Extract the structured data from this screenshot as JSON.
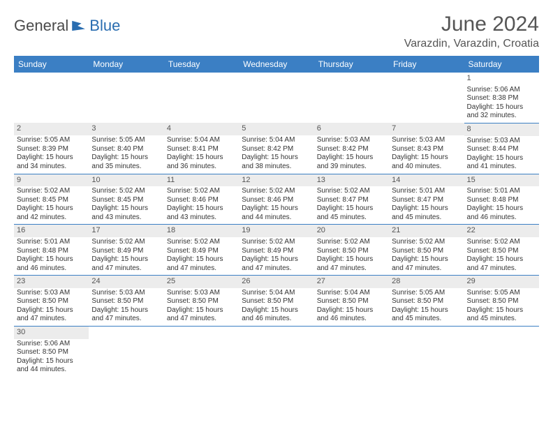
{
  "logo": {
    "text1": "General",
    "text2": "Blue"
  },
  "title": "June 2024",
  "location": "Varazdin, Varazdin, Croatia",
  "colors": {
    "header_bg": "#3b7fc4",
    "header_fg": "#ffffff",
    "cell_border": "#3b7fc4",
    "shade_bg": "#ececec",
    "text": "#333333",
    "title_color": "#555555"
  },
  "dayHeaders": [
    "Sunday",
    "Monday",
    "Tuesday",
    "Wednesday",
    "Thursday",
    "Friday",
    "Saturday"
  ],
  "weeks": [
    [
      null,
      null,
      null,
      null,
      null,
      null,
      {
        "n": "1",
        "sr": "5:06 AM",
        "ss": "8:38 PM",
        "dl": "15 hours and 32 minutes."
      }
    ],
    [
      {
        "n": "2",
        "sr": "5:05 AM",
        "ss": "8:39 PM",
        "dl": "15 hours and 34 minutes."
      },
      {
        "n": "3",
        "sr": "5:05 AM",
        "ss": "8:40 PM",
        "dl": "15 hours and 35 minutes."
      },
      {
        "n": "4",
        "sr": "5:04 AM",
        "ss": "8:41 PM",
        "dl": "15 hours and 36 minutes."
      },
      {
        "n": "5",
        "sr": "5:04 AM",
        "ss": "8:42 PM",
        "dl": "15 hours and 38 minutes."
      },
      {
        "n": "6",
        "sr": "5:03 AM",
        "ss": "8:42 PM",
        "dl": "15 hours and 39 minutes."
      },
      {
        "n": "7",
        "sr": "5:03 AM",
        "ss": "8:43 PM",
        "dl": "15 hours and 40 minutes."
      },
      {
        "n": "8",
        "sr": "5:03 AM",
        "ss": "8:44 PM",
        "dl": "15 hours and 41 minutes."
      }
    ],
    [
      {
        "n": "9",
        "sr": "5:02 AM",
        "ss": "8:45 PM",
        "dl": "15 hours and 42 minutes."
      },
      {
        "n": "10",
        "sr": "5:02 AM",
        "ss": "8:45 PM",
        "dl": "15 hours and 43 minutes."
      },
      {
        "n": "11",
        "sr": "5:02 AM",
        "ss": "8:46 PM",
        "dl": "15 hours and 43 minutes."
      },
      {
        "n": "12",
        "sr": "5:02 AM",
        "ss": "8:46 PM",
        "dl": "15 hours and 44 minutes."
      },
      {
        "n": "13",
        "sr": "5:02 AM",
        "ss": "8:47 PM",
        "dl": "15 hours and 45 minutes."
      },
      {
        "n": "14",
        "sr": "5:01 AM",
        "ss": "8:47 PM",
        "dl": "15 hours and 45 minutes."
      },
      {
        "n": "15",
        "sr": "5:01 AM",
        "ss": "8:48 PM",
        "dl": "15 hours and 46 minutes."
      }
    ],
    [
      {
        "n": "16",
        "sr": "5:01 AM",
        "ss": "8:48 PM",
        "dl": "15 hours and 46 minutes."
      },
      {
        "n": "17",
        "sr": "5:02 AM",
        "ss": "8:49 PM",
        "dl": "15 hours and 47 minutes."
      },
      {
        "n": "18",
        "sr": "5:02 AM",
        "ss": "8:49 PM",
        "dl": "15 hours and 47 minutes."
      },
      {
        "n": "19",
        "sr": "5:02 AM",
        "ss": "8:49 PM",
        "dl": "15 hours and 47 minutes."
      },
      {
        "n": "20",
        "sr": "5:02 AM",
        "ss": "8:50 PM",
        "dl": "15 hours and 47 minutes."
      },
      {
        "n": "21",
        "sr": "5:02 AM",
        "ss": "8:50 PM",
        "dl": "15 hours and 47 minutes."
      },
      {
        "n": "22",
        "sr": "5:02 AM",
        "ss": "8:50 PM",
        "dl": "15 hours and 47 minutes."
      }
    ],
    [
      {
        "n": "23",
        "sr": "5:03 AM",
        "ss": "8:50 PM",
        "dl": "15 hours and 47 minutes."
      },
      {
        "n": "24",
        "sr": "5:03 AM",
        "ss": "8:50 PM",
        "dl": "15 hours and 47 minutes."
      },
      {
        "n": "25",
        "sr": "5:03 AM",
        "ss": "8:50 PM",
        "dl": "15 hours and 47 minutes."
      },
      {
        "n": "26",
        "sr": "5:04 AM",
        "ss": "8:50 PM",
        "dl": "15 hours and 46 minutes."
      },
      {
        "n": "27",
        "sr": "5:04 AM",
        "ss": "8:50 PM",
        "dl": "15 hours and 46 minutes."
      },
      {
        "n": "28",
        "sr": "5:05 AM",
        "ss": "8:50 PM",
        "dl": "15 hours and 45 minutes."
      },
      {
        "n": "29",
        "sr": "5:05 AM",
        "ss": "8:50 PM",
        "dl": "15 hours and 45 minutes."
      }
    ],
    [
      {
        "n": "30",
        "sr": "5:06 AM",
        "ss": "8:50 PM",
        "dl": "15 hours and 44 minutes."
      },
      null,
      null,
      null,
      null,
      null,
      null
    ]
  ],
  "labels": {
    "sunrise": "Sunrise:",
    "sunset": "Sunset:",
    "daylight": "Daylight:"
  }
}
